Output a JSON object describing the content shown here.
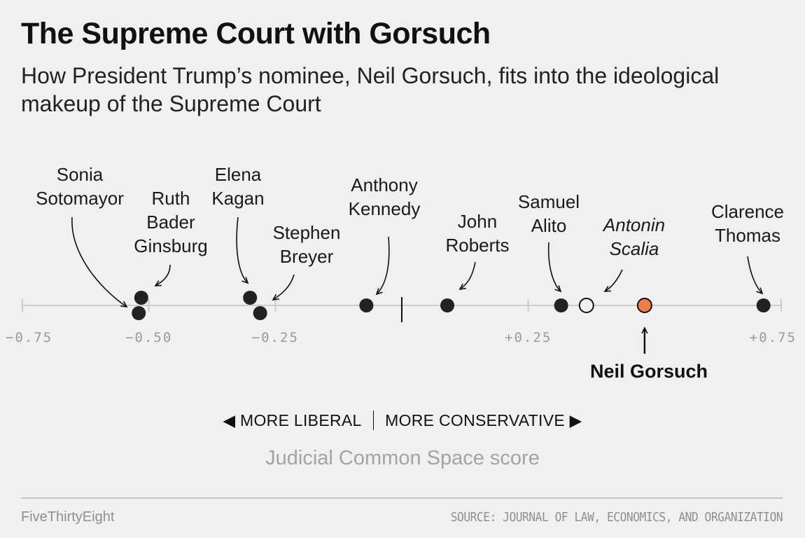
{
  "header": {
    "title": "The Supreme Court with Gorsuch",
    "subtitle": "How President Trump’s nominee, Neil Gorsuch, fits into the ideological makeup of the Supreme Court"
  },
  "chart_data": {
    "type": "scatter",
    "title": "The Supreme Court with Gorsuch",
    "xlabel": "Judicial Common Space score",
    "xlim": [
      -0.75,
      0.75
    ],
    "xticks": [
      -0.75,
      -0.5,
      -0.25,
      0.25,
      0.75
    ],
    "xtick_labels": [
      "−0.75",
      "−0.50",
      "−0.25",
      "+0.25",
      "+0.75"
    ],
    "center_marker": 0,
    "direction_left": "◀ MORE LIBERAL",
    "direction_right": "MORE CONSERVATIVE ▶",
    "points": [
      {
        "name": "Sonia Sotomayor",
        "lines": [
          "Sonia",
          "Sotomayor"
        ],
        "x": -0.52,
        "style": "filled"
      },
      {
        "name": "Ruth Bader Ginsburg",
        "lines": [
          "Ruth",
          "Bader",
          "Ginsburg"
        ],
        "x": -0.515,
        "style": "filled"
      },
      {
        "name": "Elena Kagan",
        "lines": [
          "Elena",
          "Kagan"
        ],
        "x": -0.3,
        "style": "filled"
      },
      {
        "name": "Stephen Breyer",
        "lines": [
          "Stephen",
          "Breyer"
        ],
        "x": -0.28,
        "style": "filled"
      },
      {
        "name": "Anthony Kennedy",
        "lines": [
          "Anthony",
          "Kennedy"
        ],
        "x": -0.07,
        "style": "filled"
      },
      {
        "name": "John Roberts",
        "lines": [
          "John",
          "Roberts"
        ],
        "x": 0.09,
        "style": "filled"
      },
      {
        "name": "Samuel Alito",
        "lines": [
          "Samuel",
          "Alito"
        ],
        "x": 0.315,
        "style": "filled"
      },
      {
        "name": "Antonin Scalia",
        "lines": [
          "Antonin",
          "Scalia"
        ],
        "x": 0.365,
        "style": "open"
      },
      {
        "name": "Neil Gorsuch",
        "lines": [
          "Neil Gorsuch"
        ],
        "x": 0.48,
        "style": "highlight"
      },
      {
        "name": "Clarence Thomas",
        "lines": [
          "Clarence",
          "Thomas"
        ],
        "x": 0.715,
        "style": "filled"
      }
    ],
    "colors": {
      "point": "#222222",
      "highlight": "#ee7d4a",
      "axis": "#cccccc"
    }
  },
  "footer": {
    "brand": "FiveThirtyEight",
    "source": "SOURCE: JOURNAL OF LAW, ECONOMICS, AND ORGANIZATION"
  }
}
